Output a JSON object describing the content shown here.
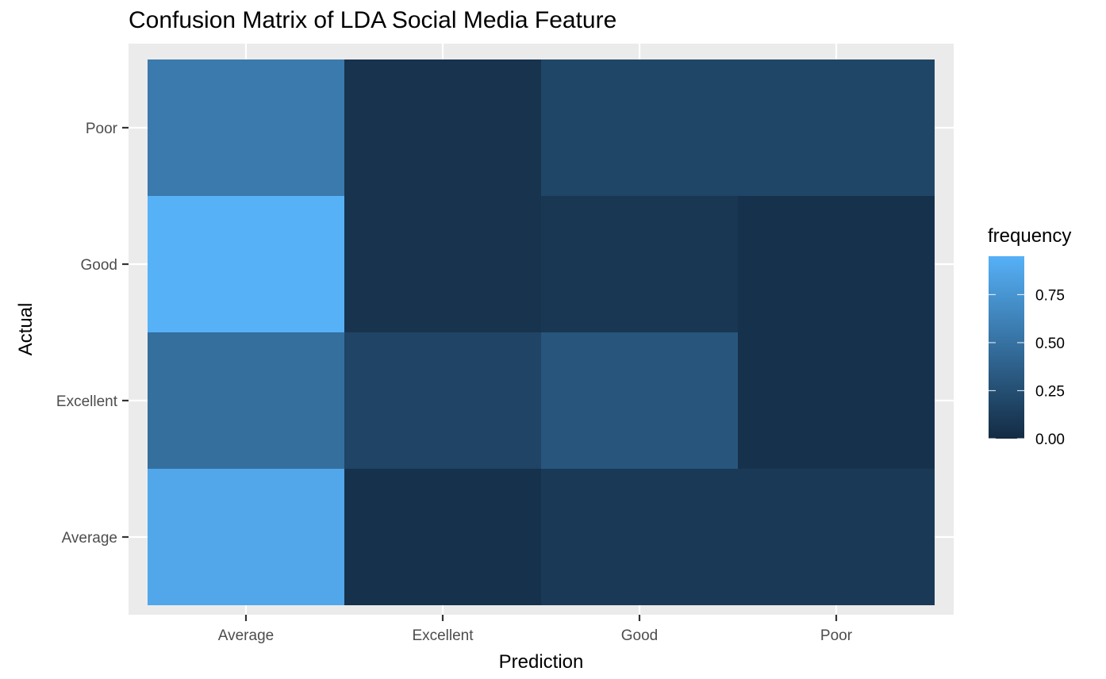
{
  "chart_data": {
    "type": "heatmap",
    "title": "Confusion Matrix of LDA Social Media Feature",
    "xlabel": "Prediction",
    "ylabel": "Actual",
    "x_categories": [
      "Average",
      "Excellent",
      "Good",
      "Poor"
    ],
    "y_categories": [
      "Average",
      "Excellent",
      "Good",
      "Poor"
    ],
    "cells": [
      {
        "actual": "Poor",
        "prediction": "Average",
        "value": 0.56
      },
      {
        "actual": "Poor",
        "prediction": "Excellent",
        "value": 0.06
      },
      {
        "actual": "Poor",
        "prediction": "Good",
        "value": 0.19
      },
      {
        "actual": "Poor",
        "prediction": "Poor",
        "value": 0.19
      },
      {
        "actual": "Good",
        "prediction": "Average",
        "value": 0.95
      },
      {
        "actual": "Good",
        "prediction": "Excellent",
        "value": 0.06
      },
      {
        "actual": "Good",
        "prediction": "Good",
        "value": 0.08
      },
      {
        "actual": "Good",
        "prediction": "Poor",
        "value": 0.04
      },
      {
        "actual": "Excellent",
        "prediction": "Average",
        "value": 0.48
      },
      {
        "actual": "Excellent",
        "prediction": "Excellent",
        "value": 0.18
      },
      {
        "actual": "Excellent",
        "prediction": "Good",
        "value": 0.3
      },
      {
        "actual": "Excellent",
        "prediction": "Poor",
        "value": 0.04
      },
      {
        "actual": "Average",
        "prediction": "Average",
        "value": 0.88
      },
      {
        "actual": "Average",
        "prediction": "Excellent",
        "value": 0.04
      },
      {
        "actual": "Average",
        "prediction": "Good",
        "value": 0.1
      },
      {
        "actual": "Average",
        "prediction": "Poor",
        "value": 0.1
      }
    ],
    "legend": {
      "title": "frequency",
      "ticks": [
        0.0,
        0.25,
        0.5,
        0.75
      ],
      "tick_labels": [
        "0.00",
        "0.25",
        "0.50",
        "0.75"
      ],
      "range": [
        0,
        0.95
      ],
      "placement": "right"
    },
    "grid": true,
    "colors": {
      "low": "#132B43",
      "high": "#56B1F7",
      "panel_background": "#EBEBEB",
      "grid": "#FFFFFF"
    }
  }
}
